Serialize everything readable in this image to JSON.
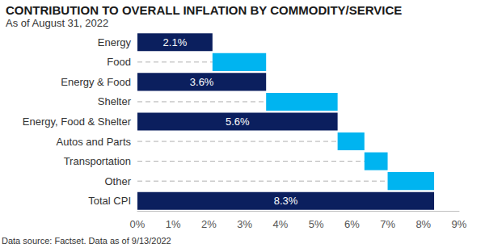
{
  "chart_data": {
    "type": "bar",
    "orientation": "horizontal",
    "title": "CONTRIBUTION TO OVERALL INFLATION BY COMMODITY/SERVICE",
    "subtitle": "As of August 31, 2022",
    "source": "Data source: Factset. Data as of 9/13/2022",
    "categories": [
      "Energy",
      "Food",
      "Energy & Food",
      "Shelter",
      "Energy, Food & Shelter",
      "Autos and Parts",
      "Transportation",
      "Other",
      "Total CPI"
    ],
    "values": [
      2.1,
      1.5,
      3.6,
      2,
      5.6,
      0.75,
      0.65,
      1.3,
      8.3
    ],
    "value_labels": [
      "2.1%",
      null,
      "3.6%",
      null,
      "5.6%",
      null,
      null,
      null,
      "8.3%"
    ],
    "colors": [
      "#0b1f5e",
      "#00b4f0",
      "#0b1f5e",
      "#00b4f0",
      "#0b1f5e",
      "#00b4f0",
      "#00b4f0",
      "#00b4f0",
      "#0b1f5e"
    ],
    "data_labels": true,
    "grid": false,
    "xlim": [
      0,
      9
    ],
    "xticks": [
      {
        "value": 0,
        "label": "0%"
      },
      {
        "value": 1,
        "label": "1%"
      },
      {
        "value": 2,
        "label": "2%"
      },
      {
        "value": 3,
        "label": "3%"
      },
      {
        "value": 4,
        "label": "4%"
      },
      {
        "value": 5,
        "label": "5%"
      },
      {
        "value": 6,
        "label": "6%"
      },
      {
        "value": 7,
        "label": "7%"
      },
      {
        "value": 8,
        "label": "8%"
      },
      {
        "value": 9,
        "label": "9%"
      }
    ]
  }
}
